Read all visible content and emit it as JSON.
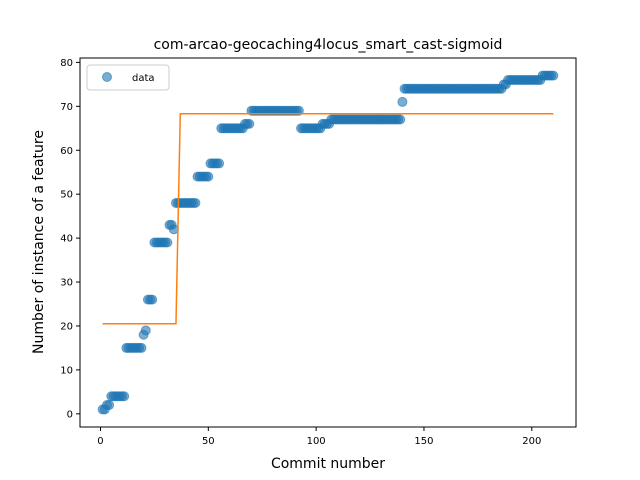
{
  "chart_data": {
    "type": "scatter",
    "title": "com-arcao-geocaching4locus_smart_cast-sigmoid",
    "xlabel": "Commit number",
    "ylabel": "Number of instance of a feature",
    "xlim": [
      -9.5,
      220.5
    ],
    "ylim": [
      -3,
      81
    ],
    "xticks": [
      0,
      50,
      100,
      150,
      200
    ],
    "yticks": [
      0,
      10,
      20,
      30,
      40,
      50,
      60,
      70,
      80
    ],
    "grid": false,
    "legend": {
      "placement": "top-left",
      "entries": [
        "data"
      ]
    },
    "colors": {
      "data": "#1f77b4",
      "fit": "#ff7f0e"
    },
    "series": [
      {
        "name": "data",
        "kind": "scatter",
        "points": [
          [
            1,
            1
          ],
          [
            2,
            1
          ],
          [
            3,
            2
          ],
          [
            4,
            2
          ],
          [
            5,
            4
          ],
          [
            6,
            4
          ],
          [
            7,
            4
          ],
          [
            8,
            4
          ],
          [
            9,
            4
          ],
          [
            10,
            4
          ],
          [
            11,
            4
          ],
          [
            12,
            15
          ],
          [
            13,
            15
          ],
          [
            14,
            15
          ],
          [
            15,
            15
          ],
          [
            16,
            15
          ],
          [
            17,
            15
          ],
          [
            18,
            15
          ],
          [
            19,
            15
          ],
          [
            20,
            18
          ],
          [
            21,
            19
          ],
          [
            22,
            26
          ],
          [
            23,
            26
          ],
          [
            24,
            26
          ],
          [
            25,
            39
          ],
          [
            26,
            39
          ],
          [
            27,
            39
          ],
          [
            28,
            39
          ],
          [
            29,
            39
          ],
          [
            30,
            39
          ],
          [
            31,
            39
          ],
          [
            32,
            43
          ],
          [
            33,
            43
          ],
          [
            34,
            42
          ],
          [
            35,
            48
          ],
          [
            36,
            48
          ],
          [
            37,
            48
          ],
          [
            38,
            48
          ],
          [
            39,
            48
          ],
          [
            40,
            48
          ],
          [
            41,
            48
          ],
          [
            42,
            48
          ],
          [
            43,
            48
          ],
          [
            44,
            48
          ],
          [
            45,
            54
          ],
          [
            46,
            54
          ],
          [
            47,
            54
          ],
          [
            48,
            54
          ],
          [
            49,
            54
          ],
          [
            50,
            54
          ],
          [
            51,
            57
          ],
          [
            52,
            57
          ],
          [
            53,
            57
          ],
          [
            54,
            57
          ],
          [
            55,
            57
          ],
          [
            56,
            65
          ],
          [
            57,
            65
          ],
          [
            58,
            65
          ],
          [
            59,
            65
          ],
          [
            60,
            65
          ],
          [
            61,
            65
          ],
          [
            62,
            65
          ],
          [
            63,
            65
          ],
          [
            64,
            65
          ],
          [
            65,
            65
          ],
          [
            66,
            65
          ],
          [
            67,
            66
          ],
          [
            68,
            66
          ],
          [
            69,
            66
          ],
          [
            70,
            69
          ],
          [
            71,
            69
          ],
          [
            72,
            69
          ],
          [
            73,
            69
          ],
          [
            74,
            69
          ],
          [
            75,
            69
          ],
          [
            76,
            69
          ],
          [
            77,
            69
          ],
          [
            78,
            69
          ],
          [
            79,
            69
          ],
          [
            80,
            69
          ],
          [
            81,
            69
          ],
          [
            82,
            69
          ],
          [
            83,
            69
          ],
          [
            84,
            69
          ],
          [
            85,
            69
          ],
          [
            86,
            69
          ],
          [
            87,
            69
          ],
          [
            88,
            69
          ],
          [
            89,
            69
          ],
          [
            90,
            69
          ],
          [
            91,
            69
          ],
          [
            92,
            69
          ],
          [
            93,
            65
          ],
          [
            94,
            65
          ],
          [
            95,
            65
          ],
          [
            96,
            65
          ],
          [
            97,
            65
          ],
          [
            98,
            65
          ],
          [
            99,
            65
          ],
          [
            100,
            65
          ],
          [
            101,
            65
          ],
          [
            102,
            65
          ],
          [
            103,
            66
          ],
          [
            104,
            66
          ],
          [
            105,
            66
          ],
          [
            106,
            66
          ],
          [
            107,
            67
          ],
          [
            108,
            67
          ],
          [
            109,
            67
          ],
          [
            110,
            67
          ],
          [
            111,
            67
          ],
          [
            112,
            67
          ],
          [
            113,
            67
          ],
          [
            114,
            67
          ],
          [
            115,
            67
          ],
          [
            116,
            67
          ],
          [
            117,
            67
          ],
          [
            118,
            67
          ],
          [
            119,
            67
          ],
          [
            120,
            67
          ],
          [
            121,
            67
          ],
          [
            122,
            67
          ],
          [
            123,
            67
          ],
          [
            124,
            67
          ],
          [
            125,
            67
          ],
          [
            126,
            67
          ],
          [
            127,
            67
          ],
          [
            128,
            67
          ],
          [
            129,
            67
          ],
          [
            130,
            67
          ],
          [
            131,
            67
          ],
          [
            132,
            67
          ],
          [
            133,
            67
          ],
          [
            134,
            67
          ],
          [
            135,
            67
          ],
          [
            136,
            67
          ],
          [
            137,
            67
          ],
          [
            138,
            67
          ],
          [
            139,
            67
          ],
          [
            140,
            71
          ],
          [
            141,
            74
          ],
          [
            142,
            74
          ],
          [
            143,
            74
          ],
          [
            144,
            74
          ],
          [
            145,
            74
          ],
          [
            146,
            74
          ],
          [
            147,
            74
          ],
          [
            148,
            74
          ],
          [
            149,
            74
          ],
          [
            150,
            74
          ],
          [
            151,
            74
          ],
          [
            152,
            74
          ],
          [
            153,
            74
          ],
          [
            154,
            74
          ],
          [
            155,
            74
          ],
          [
            156,
            74
          ],
          [
            157,
            74
          ],
          [
            158,
            74
          ],
          [
            159,
            74
          ],
          [
            160,
            74
          ],
          [
            161,
            74
          ],
          [
            162,
            74
          ],
          [
            163,
            74
          ],
          [
            164,
            74
          ],
          [
            165,
            74
          ],
          [
            166,
            74
          ],
          [
            167,
            74
          ],
          [
            168,
            74
          ],
          [
            169,
            74
          ],
          [
            170,
            74
          ],
          [
            171,
            74
          ],
          [
            172,
            74
          ],
          [
            173,
            74
          ],
          [
            174,
            74
          ],
          [
            175,
            74
          ],
          [
            176,
            74
          ],
          [
            177,
            74
          ],
          [
            178,
            74
          ],
          [
            179,
            74
          ],
          [
            180,
            74
          ],
          [
            181,
            74
          ],
          [
            182,
            74
          ],
          [
            183,
            74
          ],
          [
            184,
            74
          ],
          [
            185,
            74
          ],
          [
            186,
            74
          ],
          [
            187,
            75
          ],
          [
            188,
            75
          ],
          [
            189,
            76
          ],
          [
            190,
            76
          ],
          [
            191,
            76
          ],
          [
            192,
            76
          ],
          [
            193,
            76
          ],
          [
            194,
            76
          ],
          [
            195,
            76
          ],
          [
            196,
            76
          ],
          [
            197,
            76
          ],
          [
            198,
            76
          ],
          [
            199,
            76
          ],
          [
            200,
            76
          ],
          [
            201,
            76
          ],
          [
            202,
            76
          ],
          [
            203,
            76
          ],
          [
            204,
            76
          ],
          [
            205,
            77
          ],
          [
            206,
            77
          ],
          [
            207,
            77
          ],
          [
            208,
            77
          ],
          [
            209,
            77
          ],
          [
            210,
            77
          ]
        ]
      },
      {
        "name": "",
        "kind": "line",
        "points": [
          [
            1,
            20.5
          ],
          [
            35,
            20.5
          ],
          [
            37,
            68.3
          ],
          [
            210,
            68.3
          ]
        ]
      }
    ]
  }
}
